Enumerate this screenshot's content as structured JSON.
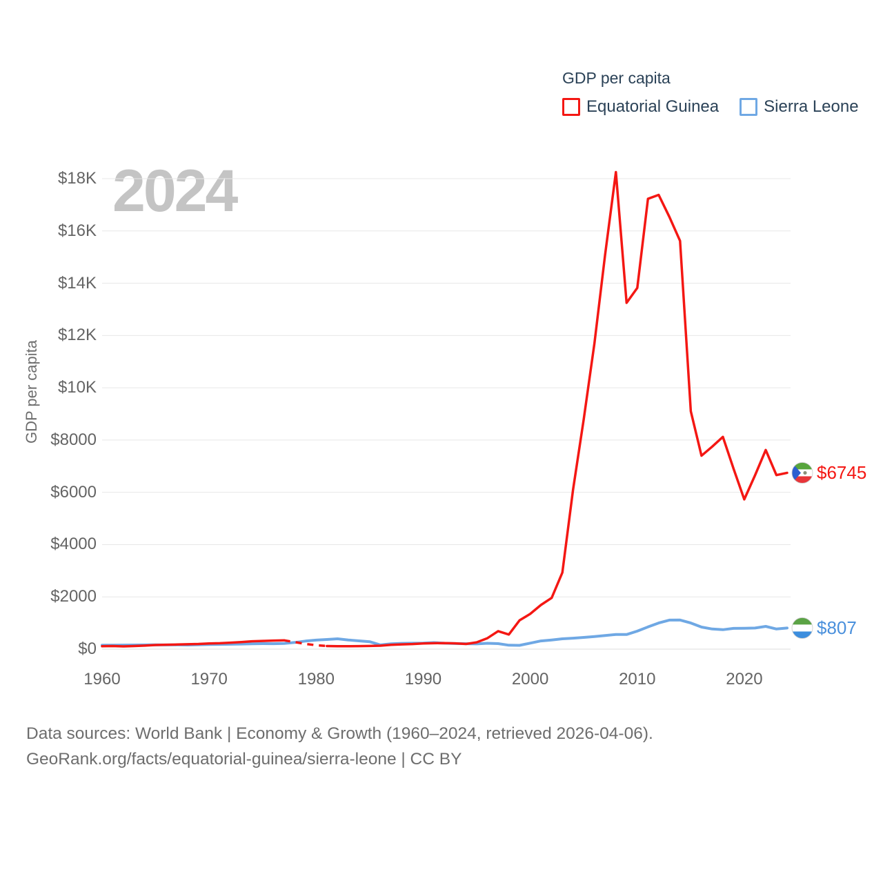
{
  "watermark": "2024",
  "y_axis_title": "GDP per capita",
  "legend": {
    "title": "GDP per capita",
    "items": [
      {
        "label": "Equatorial Guinea",
        "color": "#f41713"
      },
      {
        "label": "Sierra Leone",
        "color": "#6fa8e4"
      }
    ]
  },
  "footer": {
    "line1": "Data sources: World Bank | Economy & Growth (1960–2024, retrieved 2026-04-06).",
    "line2": "GeoRank.org/facts/equatorial-guinea/sierra-leone | CC BY"
  },
  "chart_data": {
    "type": "line",
    "title": "GDP per capita",
    "xlabel": "",
    "ylabel": "GDP per capita",
    "ylim": [
      0,
      18500
    ],
    "grid": "horizontal",
    "legend_position": "top-right",
    "xticks": [
      1960,
      1970,
      1980,
      1990,
      2000,
      2010,
      2020
    ],
    "yticks": [
      0,
      2000,
      4000,
      6000,
      8000,
      10000,
      12000,
      14000,
      16000,
      18000
    ],
    "ytick_labels": [
      "$0",
      "$2000",
      "$4000",
      "$6000",
      "$8000",
      "$10K",
      "$12K",
      "$14K",
      "$16K",
      "$18K"
    ],
    "years": [
      1960,
      1961,
      1962,
      1963,
      1964,
      1965,
      1966,
      1967,
      1968,
      1969,
      1970,
      1971,
      1972,
      1973,
      1974,
      1975,
      1976,
      1977,
      1978,
      1979,
      1980,
      1981,
      1982,
      1983,
      1984,
      1985,
      1986,
      1987,
      1988,
      1989,
      1990,
      1991,
      1992,
      1993,
      1994,
      1995,
      1996,
      1997,
      1998,
      1999,
      2000,
      2001,
      2002,
      2003,
      2004,
      2005,
      2006,
      2007,
      2008,
      2009,
      2010,
      2011,
      2012,
      2013,
      2014,
      2015,
      2016,
      2017,
      2018,
      2019,
      2020,
      2021,
      2022,
      2023,
      2024
    ],
    "series": [
      {
        "name": "Equatorial Guinea",
        "color": "#f41713",
        "label_color": "#f41713",
        "end_label": "$6745",
        "end_value": 6745,
        "dashed_segment": [
          1977,
          1981
        ],
        "flag": {
          "name": "equatorial-guinea-flag",
          "stripes": [
            "#57a53c",
            "#ffffff",
            "#e8353a"
          ],
          "triangle": "#2c5fd0",
          "emblem": "#8a9079"
        },
        "values": [
          110,
          118,
          105,
          118,
          135,
          158,
          168,
          178,
          188,
          198,
          218,
          228,
          248,
          272,
          300,
          315,
          328,
          338,
          270,
          200,
          150,
          118,
          110,
          110,
          115,
          122,
          132,
          165,
          182,
          196,
          218,
          228,
          232,
          222,
          198,
          262,
          420,
          690,
          560,
          1100,
          1350,
          1690,
          1960,
          2930,
          6100,
          8800,
          11700,
          15100,
          18250,
          13250,
          13820,
          17230,
          17380,
          16540,
          15620,
          9100,
          7400,
          7750,
          8120,
          6900,
          5730,
          6650,
          7620,
          6660,
          6745
        ]
      },
      {
        "name": "Sierra Leone",
        "color": "#6fa8e4",
        "label_color": "#4a90dc",
        "end_label": "$807",
        "end_value": 807,
        "flag": {
          "name": "sierra-leone-flag",
          "stripes": [
            "#5ba345",
            "#ffffff",
            "#3c8ede"
          ]
        },
        "values": [
          150,
          152,
          155,
          158,
          162,
          165,
          160,
          163,
          158,
          168,
          178,
          182,
          188,
          196,
          205,
          212,
          208,
          218,
          255,
          310,
          345,
          370,
          395,
          350,
          318,
          285,
          160,
          205,
          222,
          228,
          232,
          250,
          228,
          215,
          208,
          200,
          225,
          212,
          150,
          145,
          230,
          315,
          350,
          395,
          420,
          450,
          483,
          520,
          563,
          560,
          690,
          850,
          1000,
          1110,
          1115,
          1000,
          845,
          770,
          745,
          795,
          800,
          808,
          870,
          770,
          807
        ]
      }
    ]
  }
}
